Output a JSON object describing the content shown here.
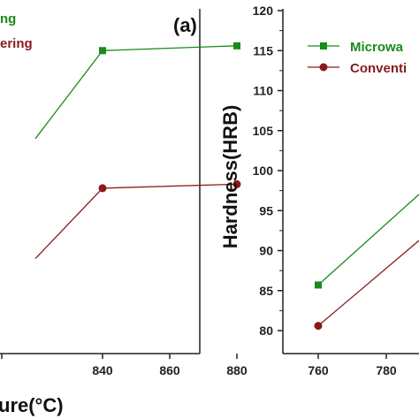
{
  "colors": {
    "microwave": "#1a8a1a",
    "conventional": "#8b1a1a",
    "axis": "#222222"
  },
  "chart_data": [
    {
      "type": "line",
      "panel_label": "(a)",
      "xlabel": "ure(°C)",
      "ylabel": "",
      "x_ticks": [
        "840",
        "860",
        "880"
      ],
      "x": [
        820,
        840,
        880
      ],
      "series": [
        {
          "name": "ng",
          "marker": "square",
          "values": [
            104,
            115,
            115.6
          ]
        },
        {
          "name": "ering",
          "marker": "circle",
          "values": [
            89,
            97.8,
            98.3
          ]
        }
      ],
      "legend_placement": "top-left"
    },
    {
      "type": "line",
      "xlabel": "",
      "ylabel": "Hardness(HRB)",
      "x_ticks": [
        "760",
        "780"
      ],
      "y_ticks": [
        "80",
        "85",
        "90",
        "95",
        "100",
        "105",
        "110",
        "115",
        "120"
      ],
      "ylim": [
        77.5,
        120
      ],
      "x": [
        760,
        800
      ],
      "series": [
        {
          "name": "Microwa",
          "marker": "square",
          "values": [
            85.7,
            101
          ]
        },
        {
          "name": "Conventi",
          "marker": "circle",
          "values": [
            80.6,
            95
          ]
        }
      ],
      "legend_placement": "top-right"
    }
  ]
}
